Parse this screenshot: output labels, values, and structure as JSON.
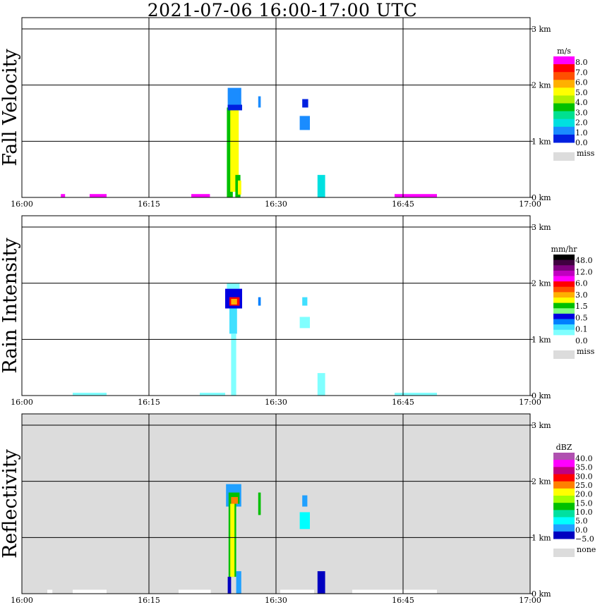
{
  "title": "2021-07-06   16:00-17:00 UTC",
  "chart_data": [
    {
      "type": "heatmap",
      "panel": "Fall Velocity",
      "x_ticks": [
        "16:00",
        "16:15",
        "16:30",
        "16:45",
        "17:00"
      ],
      "y_ticks": [
        "0 km",
        "1 km",
        "2 km",
        "3 km"
      ],
      "xlim": [
        "16:00",
        "17:00"
      ],
      "ylim_km": [
        0,
        3.2
      ],
      "legend": {
        "unit": "m/s",
        "colors": [
          "#0020e0",
          "#1a8cff",
          "#00e0e0",
          "#00e090",
          "#00c000",
          "#b0f000",
          "#ffff00",
          "#ffb000",
          "#ff5000",
          "#ff0000",
          "#ff00ff"
        ],
        "labels": [
          "8.0",
          "7.0",
          "6.0",
          "5.0",
          "4.0",
          "3.0",
          "2.0",
          "1.0",
          "0.0",
          "miss"
        ],
        "miss_color": "#dcdcdc"
      },
      "background": "#ffffff"
    },
    {
      "type": "heatmap",
      "panel": "Rain Intensity",
      "x_ticks": [
        "16:00",
        "16:15",
        "16:30",
        "16:45",
        "17:00"
      ],
      "y_ticks": [
        "0 km",
        "1 km",
        "2 km",
        "3 km"
      ],
      "xlim": [
        "16:00",
        "17:00"
      ],
      "ylim_km": [
        0,
        3.2
      ],
      "legend": {
        "unit": "mm/hr",
        "colors": [
          "#ffffff",
          "#80ffff",
          "#40e0ff",
          "#0080ff",
          "#0000e0",
          "#80ff80",
          "#00c000",
          "#ffff00",
          "#ffb000",
          "#ff5000",
          "#ff0000",
          "#ff00ff",
          "#c000c0",
          "#800080",
          "#400040",
          "#000000"
        ],
        "labels": [
          "48.0",
          "12.0",
          "6.0",
          "3.0",
          "1.5",
          "0.5",
          "0.1",
          "0.0",
          "miss"
        ],
        "miss_color": "#dcdcdc"
      },
      "background": "#ffffff"
    },
    {
      "type": "heatmap",
      "panel": "Reflectivity",
      "x_ticks": [
        "16:00",
        "16:15",
        "16:30",
        "16:45",
        "17:00"
      ],
      "y_ticks": [
        "0 km",
        "1 km",
        "2 km",
        "3 km"
      ],
      "xlim": [
        "16:00",
        "17:00"
      ],
      "ylim_km": [
        0,
        3.2
      ],
      "legend": {
        "unit": "dBZ",
        "colors": [
          "#0000c0",
          "#20a0ff",
          "#00ffff",
          "#00e0a0",
          "#00c000",
          "#a0ff00",
          "#ffff00",
          "#ff8000",
          "#ff0000",
          "#c00080",
          "#ff00ff",
          "#b050b0"
        ],
        "labels": [
          "40.0",
          "35.0",
          "30.0",
          "25.0",
          "20.0",
          "15.0",
          "10.0",
          "5.0",
          "0.0",
          "−5.0",
          "none"
        ],
        "none_color": "#dcdcdc"
      },
      "background": "#dcdcdc"
    }
  ]
}
